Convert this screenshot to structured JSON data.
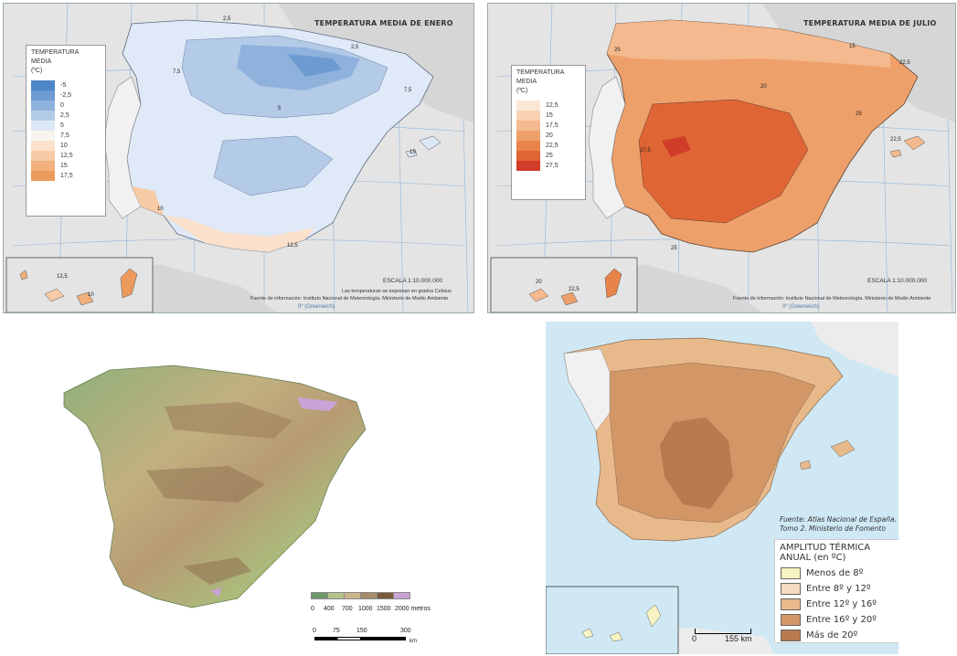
{
  "january_map": {
    "title": "TEMPERATURA MEDIA DE ENERO",
    "legend_title": "TEMPERATURA MEDIA",
    "legend_unit": "(ºC)",
    "legend": [
      {
        "label": "-5",
        "color": "#4f86c6"
      },
      {
        "label": "-2,5",
        "color": "#6e9bd2"
      },
      {
        "label": "0",
        "color": "#8fb2dd"
      },
      {
        "label": "2,5",
        "color": "#b4cbe8"
      },
      {
        "label": "5",
        "color": "#dce8f5"
      },
      {
        "label": "7,5",
        "color": "#f7f4f0"
      },
      {
        "label": "10",
        "color": "#fbe1cc"
      },
      {
        "label": "12,5",
        "color": "#f6cba6"
      },
      {
        "label": "15",
        "color": "#f1b07c"
      },
      {
        "label": "17,5",
        "color": "#ec9a5c"
      }
    ],
    "contour_labels": [
      "2,5",
      "7,5",
      "5",
      "2,5",
      "7,5",
      "10",
      "12,5",
      "15",
      "12,5",
      "10",
      "15"
    ],
    "scale": "ESCALA 1:10.000.000",
    "note": "Las temperaturas se expresan en grados Celsius",
    "source": "Fuente de información: Instituto Nacional de Meteorología. Ministerio de Medio Ambiente",
    "meridian_label": "0º (Greenwich)"
  },
  "july_map": {
    "title": "TEMPERATURA MEDIA DE JULIO",
    "legend_title": "TEMPERATURA MEDIA",
    "legend_unit": "(ºC)",
    "legend": [
      {
        "label": "12,5",
        "color": "#fbe6d6"
      },
      {
        "label": "15",
        "color": "#f8d2b3"
      },
      {
        "label": "17,5",
        "color": "#f4b98e"
      },
      {
        "label": "20",
        "color": "#eea06b"
      },
      {
        "label": "22,5",
        "color": "#e8844a"
      },
      {
        "label": "25",
        "color": "#e06534"
      },
      {
        "label": "27,5",
        "color": "#d03d28"
      }
    ],
    "contour_labels": [
      "25",
      "15",
      "22,5",
      "20",
      "25",
      "27,5",
      "25",
      "22,5",
      "20",
      "22,5"
    ],
    "scale": "ESCALA 1:10.000.000",
    "source": "Fuente de información: Instituto Nacional de Meteorología. Ministerio de Medio Ambiente",
    "meridian_label": "0º (Greenwich)"
  },
  "relief_map": {
    "elevation_legend": {
      "labels": [
        "0",
        "400",
        "700",
        "1000",
        "1500",
        "2000 metros"
      ],
      "colors": [
        "#6f9a6b",
        "#b6c489",
        "#c9b48a",
        "#a68b6a",
        "#7b5a3c",
        "#c9a2d6"
      ]
    },
    "scale_bar": {
      "labels": [
        "0",
        "75",
        "150",
        "300"
      ],
      "unit": "km"
    }
  },
  "amplitude_map": {
    "source_line1": "Fuente: Atlas Nacional de España.",
    "source_line2": "Tomo 2. Ministerio de Fomento",
    "legend_title_line1": "AMPLITUD TÉRMICA",
    "legend_title_line2": "ANUAL (en ºC)",
    "legend": [
      {
        "label": "Menos de 8º",
        "color": "#f8f3c2"
      },
      {
        "label": "Entre 8º y 12º",
        "color": "#f4dcc0"
      },
      {
        "label": "Entre 12º y 16º",
        "color": "#e8b98a"
      },
      {
        "label": "Entre 16º y 20º",
        "color": "#d39767"
      },
      {
        "label": "Más de 20º",
        "color": "#b87a4f"
      }
    ],
    "scale_labels": [
      "0",
      "155 km"
    ]
  }
}
